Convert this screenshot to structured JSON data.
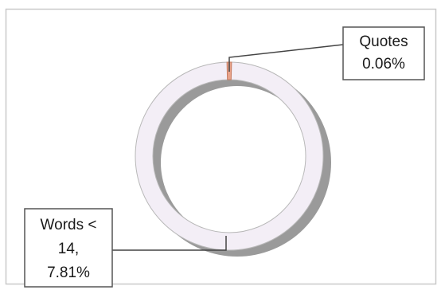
{
  "chart_data": {
    "type": "pie",
    "style": "donut",
    "slices": [
      {
        "label_lines": [
          "Quotes",
          "0.06%"
        ],
        "value": 0.06,
        "color": "#e8a38a"
      },
      {
        "label_lines": [
          "Words <",
          "14,",
          "7.81%"
        ],
        "value": 7.81,
        "color": "#f3eef6"
      }
    ],
    "title": "",
    "legend": "none",
    "colors": {
      "ring_fill": "#f3eef6",
      "ring_stroke": "#b8b8b8",
      "shadow": "#8f8f8f",
      "frame": "#c9c9c9"
    }
  }
}
